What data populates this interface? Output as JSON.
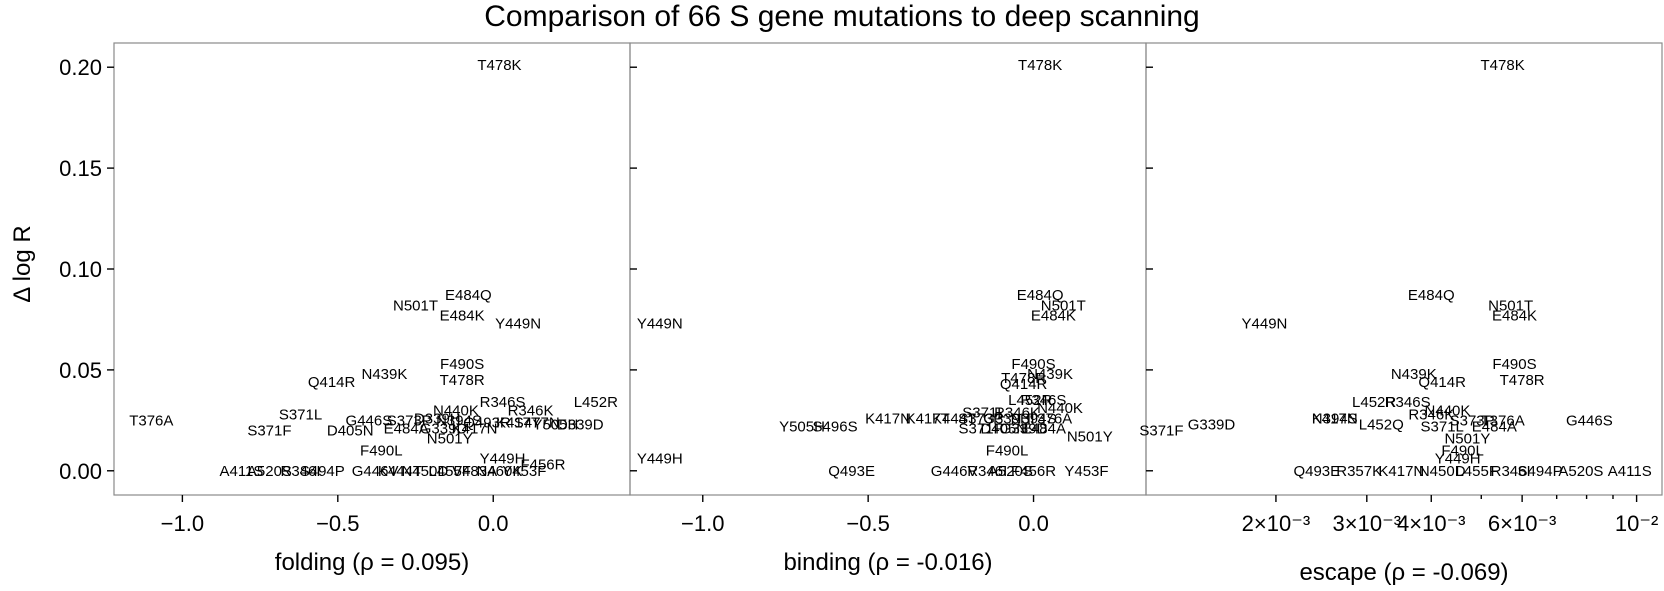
{
  "chart_data": {
    "type": "scatter",
    "title": "Comparison of 66 S gene mutations to deep scanning",
    "ylabel": "Δ log R",
    "ylim": [
      -0.012,
      0.212
    ],
    "yticks": [
      0.0,
      0.05,
      0.1,
      0.15,
      0.2
    ],
    "ytick_labels": [
      "0.00",
      "0.05",
      "0.10",
      "0.15",
      "0.20"
    ],
    "panels": [
      {
        "xlabel": "folding (ρ = 0.095)",
        "xscale": "linear",
        "xlim": [
          -1.22,
          0.44
        ],
        "xticks": [
          -1.0,
          -0.5,
          0.0
        ],
        "xtick_labels": [
          "−1.0",
          "−0.5",
          "0.0"
        ],
        "points": [
          {
            "label": "T478K",
            "x": 0.02,
            "y": 0.201
          },
          {
            "label": "E484Q",
            "x": -0.08,
            "y": 0.087
          },
          {
            "label": "N501T",
            "x": -0.25,
            "y": 0.082
          },
          {
            "label": "E484K",
            "x": -0.1,
            "y": 0.077
          },
          {
            "label": "Y449N",
            "x": 0.08,
            "y": 0.073
          },
          {
            "label": "F490S",
            "x": -0.1,
            "y": 0.053
          },
          {
            "label": "N439K",
            "x": -0.35,
            "y": 0.048
          },
          {
            "label": "Q414R",
            "x": -0.52,
            "y": 0.044
          },
          {
            "label": "T478R",
            "x": -0.1,
            "y": 0.045
          },
          {
            "label": "R346S",
            "x": 0.03,
            "y": 0.034
          },
          {
            "label": "L452R",
            "x": 0.33,
            "y": 0.034
          },
          {
            "label": "N440K",
            "x": -0.12,
            "y": 0.03
          },
          {
            "label": "R346K",
            "x": 0.12,
            "y": 0.03
          },
          {
            "label": "T376A",
            "x": -1.1,
            "y": 0.025
          },
          {
            "label": "S371L",
            "x": -0.62,
            "y": 0.028
          },
          {
            "label": "G446S",
            "x": -0.4,
            "y": 0.025
          },
          {
            "label": "S373P",
            "x": -0.27,
            "y": 0.025
          },
          {
            "label": "D339H",
            "x": -0.18,
            "y": 0.026
          },
          {
            "label": "N394S",
            "x": -0.11,
            "y": 0.025
          },
          {
            "label": "Q493R",
            "x": -0.02,
            "y": 0.024
          },
          {
            "label": "K417T",
            "x": 0.08,
            "y": 0.024
          },
          {
            "label": "S477N",
            "x": 0.14,
            "y": 0.024
          },
          {
            "label": "Y505H",
            "x": 0.2,
            "y": 0.023
          },
          {
            "label": "D339D",
            "x": 0.28,
            "y": 0.023
          },
          {
            "label": "S371F",
            "x": -0.72,
            "y": 0.02
          },
          {
            "label": "D405N",
            "x": -0.46,
            "y": 0.02
          },
          {
            "label": "E484A",
            "x": -0.28,
            "y": 0.021
          },
          {
            "label": "G339D",
            "x": -0.16,
            "y": 0.021
          },
          {
            "label": "K417N",
            "x": -0.06,
            "y": 0.021
          },
          {
            "label": "N501Y",
            "x": -0.14,
            "y": 0.016
          },
          {
            "label": "F490L",
            "x": -0.36,
            "y": 0.01
          },
          {
            "label": "Y449H",
            "x": 0.03,
            "y": 0.006
          },
          {
            "label": "F456R",
            "x": 0.16,
            "y": 0.003
          },
          {
            "label": "A411S",
            "x": -0.81,
            "y": 0.0
          },
          {
            "label": "A520S",
            "x": -0.72,
            "y": 0.0
          },
          {
            "label": "R346I",
            "x": -0.62,
            "y": 0.0
          },
          {
            "label": "S494P",
            "x": -0.55,
            "y": 0.0
          },
          {
            "label": "G446V",
            "x": -0.38,
            "y": 0.0
          },
          {
            "label": "K444T",
            "x": -0.3,
            "y": 0.0
          },
          {
            "label": "N450D",
            "x": -0.22,
            "y": 0.0
          },
          {
            "label": "L455F",
            "x": -0.14,
            "y": 0.0
          },
          {
            "label": "V483A",
            "x": -0.06,
            "y": 0.0
          },
          {
            "label": "N460K",
            "x": 0.02,
            "y": 0.0
          },
          {
            "label": "Y453F",
            "x": 0.1,
            "y": 0.0
          }
        ]
      },
      {
        "xlabel": "binding (ρ = -0.016)",
        "xscale": "linear",
        "xlim": [
          -1.22,
          0.34
        ],
        "xticks": [
          -1.0,
          -0.5,
          0.0
        ],
        "xtick_labels": [
          "−1.0",
          "−0.5",
          "0.0"
        ],
        "points": [
          {
            "label": "T478K",
            "x": 0.02,
            "y": 0.201
          },
          {
            "label": "E484Q",
            "x": 0.02,
            "y": 0.087
          },
          {
            "label": "N501T",
            "x": 0.09,
            "y": 0.082
          },
          {
            "label": "E484K",
            "x": 0.06,
            "y": 0.077
          },
          {
            "label": "Y449N",
            "x": -1.13,
            "y": 0.073
          },
          {
            "label": "F490S",
            "x": 0.0,
            "y": 0.053
          },
          {
            "label": "N439K",
            "x": 0.05,
            "y": 0.048
          },
          {
            "label": "T478R",
            "x": -0.03,
            "y": 0.046
          },
          {
            "label": "Q414R",
            "x": -0.03,
            "y": 0.043
          },
          {
            "label": "L452R",
            "x": -0.01,
            "y": 0.035
          },
          {
            "label": "R346S",
            "x": 0.03,
            "y": 0.035
          },
          {
            "label": "N440K",
            "x": 0.08,
            "y": 0.031
          },
          {
            "label": "S371L",
            "x": -0.15,
            "y": 0.029
          },
          {
            "label": "R346K",
            "x": -0.05,
            "y": 0.029
          },
          {
            "label": "K417T",
            "x": -0.32,
            "y": 0.026
          },
          {
            "label": "K444T",
            "x": -0.24,
            "y": 0.026
          },
          {
            "label": "S373P",
            "x": -0.16,
            "y": 0.026
          },
          {
            "label": "G339H",
            "x": -0.08,
            "y": 0.026
          },
          {
            "label": "N394S",
            "x": 0.0,
            "y": 0.026
          },
          {
            "label": "T376A",
            "x": 0.05,
            "y": 0.026
          },
          {
            "label": "K417N",
            "x": -0.44,
            "y": 0.026
          },
          {
            "label": "Y505H",
            "x": -0.7,
            "y": 0.022
          },
          {
            "label": "S496S",
            "x": -0.6,
            "y": 0.022
          },
          {
            "label": "S371F",
            "x": -0.16,
            "y": 0.021
          },
          {
            "label": "D405N",
            "x": -0.09,
            "y": 0.021
          },
          {
            "label": "G339D",
            "x": -0.03,
            "y": 0.021
          },
          {
            "label": "E484A",
            "x": 0.03,
            "y": 0.021
          },
          {
            "label": "N501Y",
            "x": 0.17,
            "y": 0.017
          },
          {
            "label": "F490L",
            "x": -0.08,
            "y": 0.01
          },
          {
            "label": "Y449H",
            "x": -1.13,
            "y": 0.006
          },
          {
            "label": "Q493E",
            "x": -0.55,
            "y": 0.0
          },
          {
            "label": "G446V",
            "x": -0.24,
            "y": 0.0
          },
          {
            "label": "R346I",
            "x": -0.14,
            "y": 0.0
          },
          {
            "label": "A520S",
            "x": -0.07,
            "y": 0.0
          },
          {
            "label": "F456R",
            "x": 0.0,
            "y": 0.0
          },
          {
            "label": "Y453F",
            "x": 0.16,
            "y": 0.0
          }
        ]
      },
      {
        "xlabel": "escape (ρ = -0.069)",
        "xscale": "log",
        "xlim": [
          0.00112,
          0.0112
        ],
        "xticks": [
          0.002,
          0.003,
          0.004,
          0.006,
          0.01
        ],
        "xtick_labels": [
          "2×10⁻³",
          "3×10⁻³",
          "4×10⁻³",
          "6×10⁻³",
          "10⁻²"
        ],
        "points": [
          {
            "label": "T478K",
            "x": 0.0055,
            "y": 0.201
          },
          {
            "label": "E484Q",
            "x": 0.004,
            "y": 0.087
          },
          {
            "label": "N501T",
            "x": 0.0057,
            "y": 0.082
          },
          {
            "label": "E484K",
            "x": 0.0058,
            "y": 0.077
          },
          {
            "label": "Y449N",
            "x": 0.0019,
            "y": 0.073
          },
          {
            "label": "F490S",
            "x": 0.0058,
            "y": 0.053
          },
          {
            "label": "N439K",
            "x": 0.0037,
            "y": 0.048
          },
          {
            "label": "Q414R",
            "x": 0.0042,
            "y": 0.044
          },
          {
            "label": "T478R",
            "x": 0.006,
            "y": 0.045
          },
          {
            "label": "L452R",
            "x": 0.0031,
            "y": 0.034
          },
          {
            "label": "R346S",
            "x": 0.0036,
            "y": 0.034
          },
          {
            "label": "N440K",
            "x": 0.0043,
            "y": 0.03
          },
          {
            "label": "R346K",
            "x": 0.004,
            "y": 0.028
          },
          {
            "label": "K417N",
            "x": 0.0026,
            "y": 0.026
          },
          {
            "label": "N394S",
            "x": 0.0026,
            "y": 0.026
          },
          {
            "label": "S373P",
            "x": 0.0048,
            "y": 0.025
          },
          {
            "label": "T376A",
            "x": 0.0055,
            "y": 0.025
          },
          {
            "label": "G446S",
            "x": 0.0081,
            "y": 0.025
          },
          {
            "label": "G339D",
            "x": 0.0015,
            "y": 0.023
          },
          {
            "label": "L452Q",
            "x": 0.0032,
            "y": 0.023
          },
          {
            "label": "S371L",
            "x": 0.0042,
            "y": 0.022
          },
          {
            "label": "E484A",
            "x": 0.0053,
            "y": 0.022
          },
          {
            "label": "S371F",
            "x": 0.0012,
            "y": 0.02
          },
          {
            "label": "N501Y",
            "x": 0.0047,
            "y": 0.016
          },
          {
            "label": "F490L",
            "x": 0.0046,
            "y": 0.01
          },
          {
            "label": "Y449H",
            "x": 0.0045,
            "y": 0.006
          },
          {
            "label": "Q493E",
            "x": 0.0024,
            "y": 0.0
          },
          {
            "label": "R357K",
            "x": 0.0029,
            "y": 0.0
          },
          {
            "label": "K417N",
            "x": 0.0035,
            "y": 0.0
          },
          {
            "label": "N450D",
            "x": 0.0042,
            "y": 0.0
          },
          {
            "label": "L455F",
            "x": 0.0049,
            "y": 0.0
          },
          {
            "label": "R346I",
            "x": 0.0057,
            "y": 0.0
          },
          {
            "label": "S494P",
            "x": 0.0065,
            "y": 0.0
          },
          {
            "label": "A520S",
            "x": 0.0078,
            "y": 0.0
          },
          {
            "label": "A411S",
            "x": 0.0097,
            "y": 0.0
          }
        ]
      }
    ]
  }
}
